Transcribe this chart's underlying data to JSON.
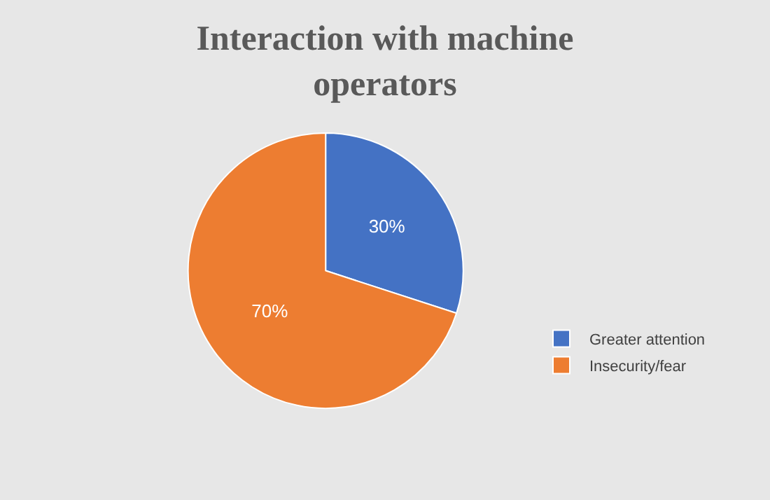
{
  "chart_data": {
    "type": "pie",
    "title": "Interaction with machine operators",
    "categories": [
      "Greater attention",
      "Insecurity/fear"
    ],
    "values": [
      30,
      70
    ],
    "colors": [
      "#4472c4",
      "#ed7d31"
    ],
    "value_labels": [
      "30%",
      "70%"
    ],
    "legend": "right"
  }
}
